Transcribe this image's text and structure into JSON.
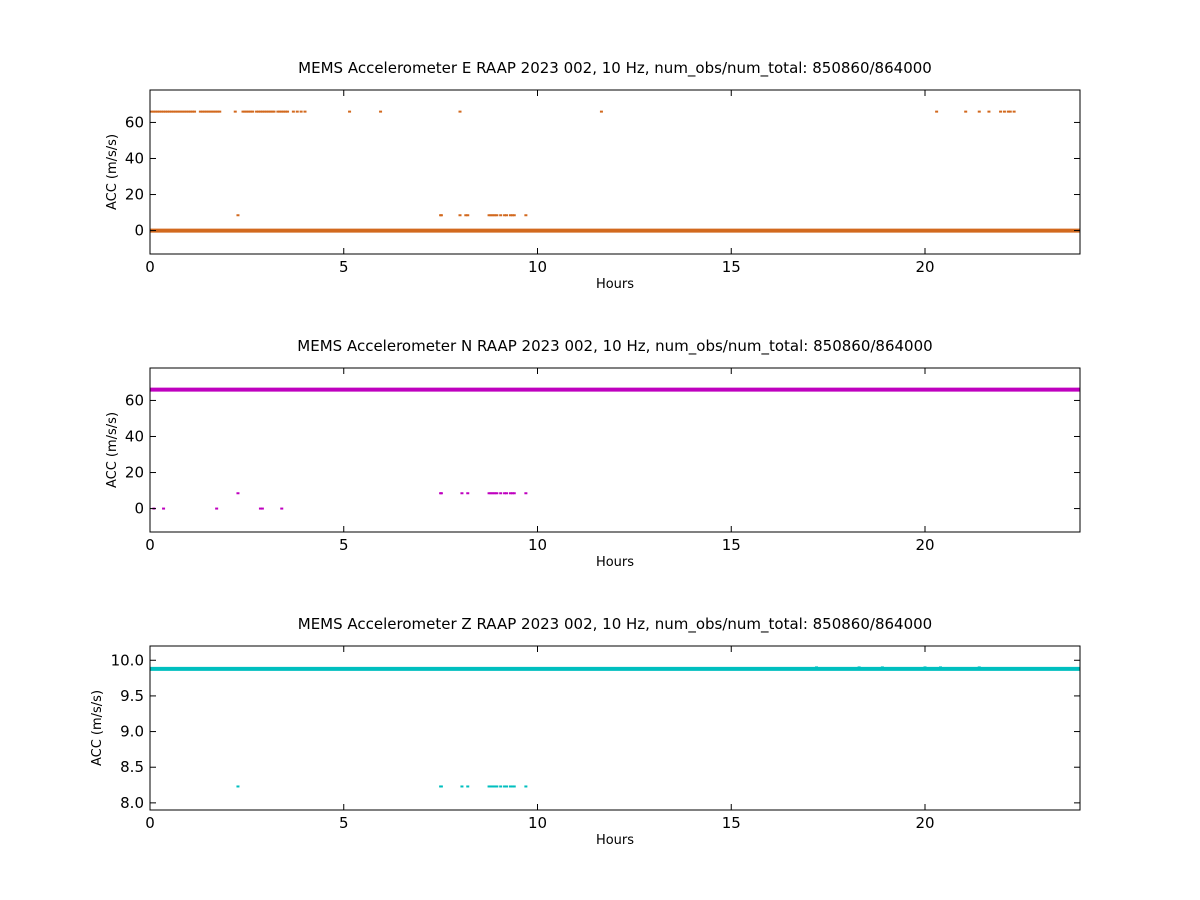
{
  "chart_data": [
    {
      "type": "scatter",
      "title": "MEMS Accelerometer E RAAP 2023 002, 10 Hz, num_obs/num_total: 850860/864000",
      "xlabel": "Hours",
      "ylabel": "ACC (m/s/s)",
      "xlim": [
        0,
        24
      ],
      "ylim": [
        -13,
        78
      ],
      "xticks": [
        0,
        5,
        10,
        15,
        20
      ],
      "yticks": [
        0,
        20,
        40,
        60
      ],
      "grid": false,
      "color": "#d2691e",
      "series": [
        {
          "main_level": 0,
          "main_span": [
            0,
            24
          ],
          "x": [
            0.05,
            0.1,
            0.15,
            0.2,
            0.25,
            0.3,
            0.35,
            0.4,
            0.45,
            0.5,
            0.55,
            0.6,
            0.65,
            0.7,
            0.75,
            0.8,
            0.85,
            0.9,
            0.95,
            1.0,
            1.05,
            1.1,
            1.15,
            1.3,
            1.35,
            1.4,
            1.45,
            1.5,
            1.55,
            1.6,
            1.65,
            1.7,
            1.75,
            1.8,
            2.2,
            2.4,
            2.45,
            2.5,
            2.55,
            2.6,
            2.65,
            2.75,
            2.8,
            2.85,
            2.9,
            2.95,
            3.0,
            3.05,
            3.1,
            3.15,
            3.2,
            3.3,
            3.35,
            3.4,
            3.45,
            3.5,
            3.55,
            3.7,
            3.8,
            3.9,
            4.0,
            5.15,
            5.95,
            8.0,
            11.65,
            20.3,
            21.05,
            21.4,
            21.65,
            21.95,
            22.05,
            22.15,
            22.2,
            22.3,
            2.27,
            7.5,
            7.52,
            8.0,
            8.15,
            8.2,
            8.75,
            8.8,
            8.85,
            8.9,
            8.95,
            9.05,
            9.15,
            9.2,
            9.3,
            9.35,
            9.4,
            9.7
          ],
          "y": [
            66,
            66,
            66,
            66,
            66,
            66,
            66,
            66,
            66,
            66,
            66,
            66,
            66,
            66,
            66,
            66,
            66,
            66,
            66,
            66,
            66,
            66,
            66,
            66,
            66,
            66,
            66,
            66,
            66,
            66,
            66,
            66,
            66,
            66,
            66,
            66,
            66,
            66,
            66,
            66,
            66,
            66,
            66,
            66,
            66,
            66,
            66,
            66,
            66,
            66,
            66,
            66,
            66,
            66,
            66,
            66,
            66,
            66,
            66,
            66,
            66,
            66,
            66,
            66,
            66,
            66,
            66,
            66,
            66,
            66,
            66,
            66,
            66,
            66,
            8.5,
            8.5,
            8.5,
            8.5,
            8.5,
            8.5,
            8.5,
            8.5,
            8.5,
            8.5,
            8.5,
            8.5,
            8.5,
            8.5,
            8.5,
            8.5,
            8.5,
            8.5
          ]
        }
      ]
    },
    {
      "type": "scatter",
      "title": "MEMS Accelerometer N RAAP 2023 002, 10 Hz, num_obs/num_total: 850860/864000",
      "xlabel": "Hours",
      "ylabel": "ACC (m/s/s)",
      "xlim": [
        0,
        24
      ],
      "ylim": [
        -13,
        78
      ],
      "xticks": [
        0,
        5,
        10,
        15,
        20
      ],
      "yticks": [
        0,
        20,
        40,
        60
      ],
      "grid": false,
      "color": "#bf00bf",
      "series": [
        {
          "main_level": 66,
          "main_span": [
            0,
            24
          ],
          "x": [
            0.1,
            0.35,
            1.72,
            2.85,
            2.9,
            3.4,
            2.27,
            7.5,
            7.52,
            8.05,
            8.2,
            8.75,
            8.8,
            8.85,
            8.9,
            8.95,
            9.05,
            9.15,
            9.2,
            9.3,
            9.35,
            9.4,
            9.7
          ],
          "y": [
            0,
            0,
            0,
            0,
            0,
            0,
            8.5,
            8.5,
            8.5,
            8.5,
            8.5,
            8.5,
            8.5,
            8.5,
            8.5,
            8.5,
            8.5,
            8.5,
            8.5,
            8.5,
            8.5,
            8.5,
            8.5
          ]
        }
      ]
    },
    {
      "type": "scatter",
      "title": "MEMS Accelerometer Z RAAP 2023 002, 10 Hz, num_obs/num_total: 850860/864000",
      "xlabel": "Hours",
      "ylabel": "ACC (m/s/s)",
      "xlim": [
        0,
        24
      ],
      "ylim": [
        7.9,
        10.2
      ],
      "xticks": [
        0,
        5,
        10,
        15,
        20
      ],
      "yticks": [
        8.0,
        8.5,
        9.0,
        9.5,
        10.0
      ],
      "ytick_labels": [
        "8.0",
        "8.5",
        "9.0",
        "9.5",
        "10.0"
      ],
      "grid": false,
      "color": "#00bfbf",
      "series": [
        {
          "main_level": 9.88,
          "main_span": [
            0,
            24
          ],
          "x": [
            16.3,
            16.6,
            17.2,
            17.8,
            18.3,
            18.9,
            19.4,
            20.0,
            20.4,
            20.9,
            21.4,
            21.9,
            2.27,
            7.5,
            7.52,
            8.05,
            8.2,
            8.75,
            8.8,
            8.85,
            8.9,
            8.95,
            9.05,
            9.15,
            9.2,
            9.3,
            9.35,
            9.4,
            9.7
          ],
          "y": [
            9.89,
            9.89,
            9.9,
            9.89,
            9.9,
            9.9,
            9.89,
            9.9,
            9.9,
            9.89,
            9.9,
            9.89,
            8.23,
            8.23,
            8.23,
            8.23,
            8.23,
            8.23,
            8.23,
            8.23,
            8.23,
            8.23,
            8.23,
            8.23,
            8.23,
            8.23,
            8.23,
            8.23,
            8.23
          ]
        }
      ]
    }
  ]
}
